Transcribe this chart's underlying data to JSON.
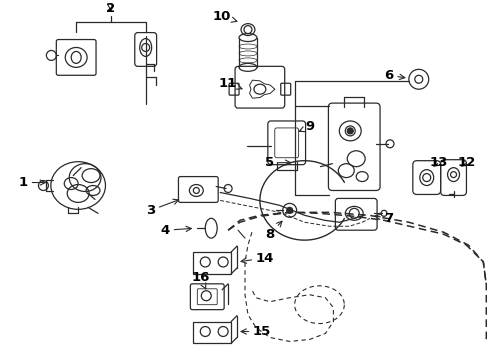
{
  "bg": "#ffffff",
  "lc": "#2a2a2a",
  "fw": 4.89,
  "fh": 3.6,
  "dpi": 100,
  "label_fs": 9.5,
  "label_fw": "bold"
}
